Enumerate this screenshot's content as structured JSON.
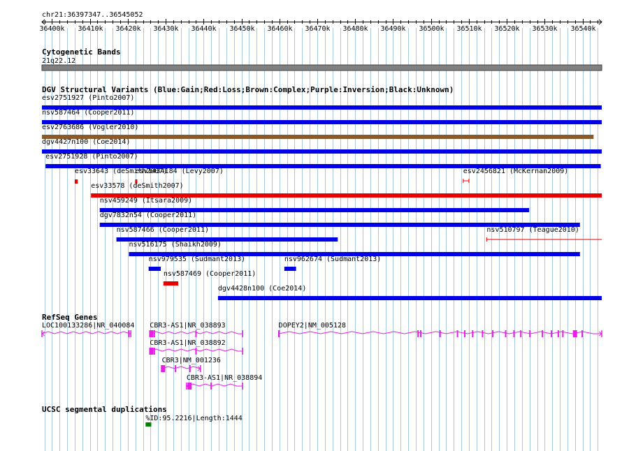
{
  "region": "chr21:36397347..36545052",
  "scale": {
    "start": 36397347,
    "end": 36545052,
    "ticks": [
      "36400k",
      "36410k",
      "36420k",
      "36430k",
      "36440k",
      "36450k",
      "36460k",
      "36470k",
      "36480k",
      "36490k",
      "36500k",
      "36510k",
      "36520k",
      "36530k",
      "36540k"
    ]
  },
  "colors": {
    "gain": "#0000e6",
    "loss": "#e60000",
    "complex": "#8b5a2b",
    "band": "#808080",
    "gene": "#e61ee6",
    "segdup": "#008000",
    "grid": "#a8c8e0"
  },
  "tracks": {
    "cytoband": {
      "title": "Cytogenetic Bands",
      "band_label": "21q22.12"
    },
    "dgv": {
      "title": "DGV Structural Variants (Blue:Gain;Red:Loss;Brown:Complex;Purple:Inversion;Black:Unknown)",
      "variants": [
        {
          "label": "esv2751927 (Pinto2007)",
          "start": 36397347,
          "end": 36545052,
          "type": "gain",
          "row": 0
        },
        {
          "label": "nsv587464 (Cooper2011)",
          "start": 36397347,
          "end": 36545052,
          "type": "gain",
          "row": 1
        },
        {
          "label": "esv2763686 (Vogler2010)",
          "start": 36397347,
          "end": 36542900,
          "type": "complex",
          "row": 2
        },
        {
          "label": "dgv4427n100 (Coe2014)",
          "start": 36397347,
          "end": 36545052,
          "type": "gain",
          "row": 3
        },
        {
          "label": "esv2751928 (Pinto2007)",
          "start": 36398300,
          "end": 36544800,
          "type": "gain",
          "row": 4
        },
        {
          "label": "esv33643 (deSmith2007)",
          "start": 36406000,
          "end": 36406800,
          "type": "loss",
          "row": 5
        },
        {
          "label": "esv1434184 (Levy2007)",
          "start": 36421950,
          "end": 36422250,
          "type": "loss",
          "row": 5
        },
        {
          "label": "esv2456821 (McKernan2009)",
          "start": 36508500,
          "end": 36510000,
          "type": "loss",
          "row": 5
        },
        {
          "label": "esv33578 (deSmith2007)",
          "start": 36410300,
          "end": 36545052,
          "type": "loss",
          "row": 6
        },
        {
          "label": "nsv459249 (Itsara2009)",
          "start": 36412600,
          "end": 36525900,
          "type": "gain",
          "row": 7
        },
        {
          "label": "dgv7832n54 (Cooper2011)",
          "start": 36412600,
          "end": 36539300,
          "type": "gain",
          "row": 8
        },
        {
          "label": "nsv587466 (Cooper2011)",
          "start": 36417000,
          "end": 36475400,
          "type": "gain",
          "row": 9
        },
        {
          "label": "nsv510797 (Teague2010)",
          "start": 36514700,
          "end": 36545052,
          "type": "loss",
          "row": 9
        },
        {
          "label": "nsv516175 (Shaikh2009)",
          "start": 36420300,
          "end": 36539300,
          "type": "gain",
          "row": 10
        },
        {
          "label": "nsv979535 (Sudmant2013)",
          "start": 36425500,
          "end": 36428700,
          "type": "gain",
          "row": 11
        },
        {
          "label": "nsv962674 (Sudmant2013)",
          "start": 36461300,
          "end": 36464400,
          "type": "gain",
          "row": 11
        },
        {
          "label": "nsv587469 (Cooper2011)",
          "start": 36429400,
          "end": 36433300,
          "type": "loss",
          "row": 12
        },
        {
          "label": "dgv4428n100 (Coe2014)",
          "start": 36443800,
          "end": 36545052,
          "type": "gain",
          "row": 13
        }
      ]
    },
    "refseq": {
      "title": "RefSeq Genes",
      "genes": [
        {
          "label": "LOC100133286|NR_040084",
          "start": 36397347,
          "end": 36420800,
          "strand": "-",
          "row": 0
        },
        {
          "label": "CBR3-AS1|NR_038893",
          "start": 36425800,
          "end": 36450300,
          "strand": "-",
          "row": 0
        },
        {
          "label": "DOPEY2|NM_005128",
          "start": 36459800,
          "end": 36545052,
          "strand": "+",
          "row": 0
        },
        {
          "label": "CBR3-AS1|NR_038892",
          "start": 36425800,
          "end": 36450300,
          "strand": "-",
          "row": 1
        },
        {
          "label": "CBR3|NM_001236",
          "start": 36429000,
          "end": 36439200,
          "strand": "+",
          "row": 2
        },
        {
          "label": "CBR3-AS1|NR_038894",
          "start": 36435500,
          "end": 36450300,
          "strand": "-",
          "row": 3
        }
      ]
    },
    "segdup": {
      "title": "UCSC segmental duplications",
      "items": [
        {
          "label": "%ID:95.2216|Length:1444",
          "start": 36424700,
          "end": 36426200
        }
      ]
    }
  }
}
